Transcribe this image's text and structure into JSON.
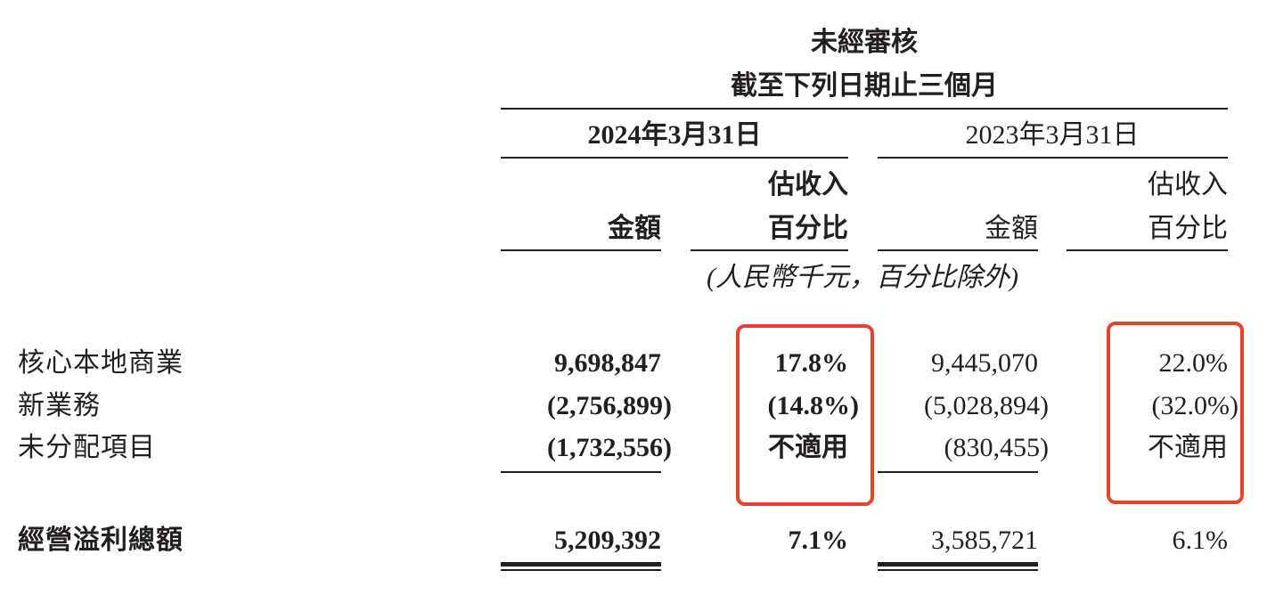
{
  "header": {
    "line1": "未經審核",
    "line2": "截至下列日期止三個月",
    "period_2024": "2024年3月31日",
    "period_2023": "2023年3月31日",
    "col_amount": "金額",
    "col_pct_top": "估收入",
    "col_pct_bottom": "百分比",
    "units": "(人民幣千元，百分比除外)"
  },
  "rows": [
    {
      "label": "核心本地商業",
      "amt_2024": "9,698,847",
      "pct_2024": "17.8%",
      "amt_2023": "9,445,070",
      "pct_2023": "22.0%"
    },
    {
      "label": "新業務",
      "amt_2024": "(2,756,899)",
      "pct_2024": "(14.8%)",
      "amt_2023": "(5,028,894)",
      "pct_2023": "(32.0%)"
    },
    {
      "label": "未分配項目",
      "amt_2024": "(1,732,556)",
      "pct_2024": "不適用",
      "amt_2023": "(830,455)",
      "pct_2023": "不適用"
    }
  ],
  "total": {
    "label": "經營溢利總額",
    "amt_2024": "5,209,392",
    "pct_2024": "7.1%",
    "amt_2023": "3,585,721",
    "pct_2023": "6.1%"
  },
  "highlight_color": "#e5432f"
}
